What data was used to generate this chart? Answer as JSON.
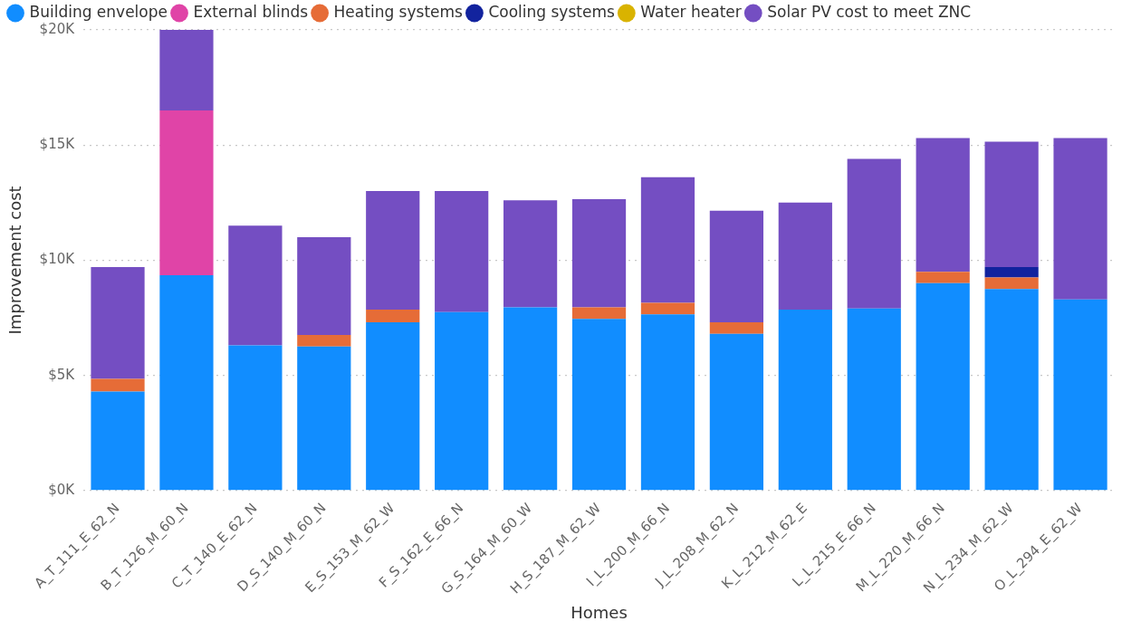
{
  "chart_data": {
    "type": "bar",
    "stacked": true,
    "xlabel": "Homes",
    "ylabel": "Improvement cost",
    "categories": [
      "A_T_111_E_62_N",
      "B_T_126_M_60_N",
      "C_T_140_E_62_N",
      "D_S_140_M_60_N",
      "E_S_153_M_62_W",
      "F_S_162_E_66_N",
      "G_S_164_M_60_W",
      "H_S_187_M_62_W",
      "I_L_200_M_66_N",
      "J_L_208_M_62_N",
      "K_L_212_M_62_E",
      "L_L_215_E_66_N",
      "M_L_220_M_66_N",
      "N_L_234_M_62_W",
      "O_L_294_E_62_W"
    ],
    "series": [
      {
        "name": "Building envelope",
        "color": "#118dff",
        "values": [
          4.3,
          9.35,
          6.3,
          6.25,
          7.3,
          7.75,
          7.95,
          7.45,
          7.65,
          6.8,
          7.85,
          7.9,
          9.0,
          8.75,
          8.3
        ]
      },
      {
        "name": "External blinds",
        "color": "#e044a7",
        "values": [
          null,
          7.15,
          null,
          null,
          null,
          null,
          null,
          null,
          null,
          null,
          null,
          null,
          null,
          null,
          null
        ]
      },
      {
        "name": "Heating systems",
        "color": "#e66c37",
        "values": [
          0.55,
          null,
          null,
          0.5,
          0.55,
          null,
          null,
          0.5,
          0.5,
          0.5,
          null,
          null,
          0.5,
          0.5,
          null
        ]
      },
      {
        "name": "Cooling systems",
        "color": "#12239e",
        "values": [
          null,
          null,
          null,
          null,
          null,
          null,
          null,
          null,
          null,
          null,
          null,
          null,
          null,
          0.45,
          null
        ]
      },
      {
        "name": "Water heater",
        "color": "#d9b300",
        "values": [
          null,
          null,
          null,
          null,
          null,
          null,
          null,
          null,
          null,
          null,
          null,
          null,
          null,
          null,
          null
        ]
      },
      {
        "name": "Solar PV cost to meet ZNC",
        "color": "#744ec2",
        "values": [
          4.85,
          3.5,
          5.2,
          4.25,
          5.15,
          5.25,
          4.65,
          4.7,
          5.45,
          4.85,
          4.65,
          6.5,
          5.8,
          5.45,
          7.0
        ]
      }
    ],
    "ylim": [
      0,
      20
    ],
    "yticks": [
      {
        "value": 0,
        "label": "$0K"
      },
      {
        "value": 5,
        "label": "$5K"
      },
      {
        "value": 10,
        "label": "$10K"
      },
      {
        "value": 15,
        "label": "$15K"
      },
      {
        "value": 20,
        "label": "$20K"
      }
    ],
    "grid": "y",
    "legend": "top left"
  }
}
